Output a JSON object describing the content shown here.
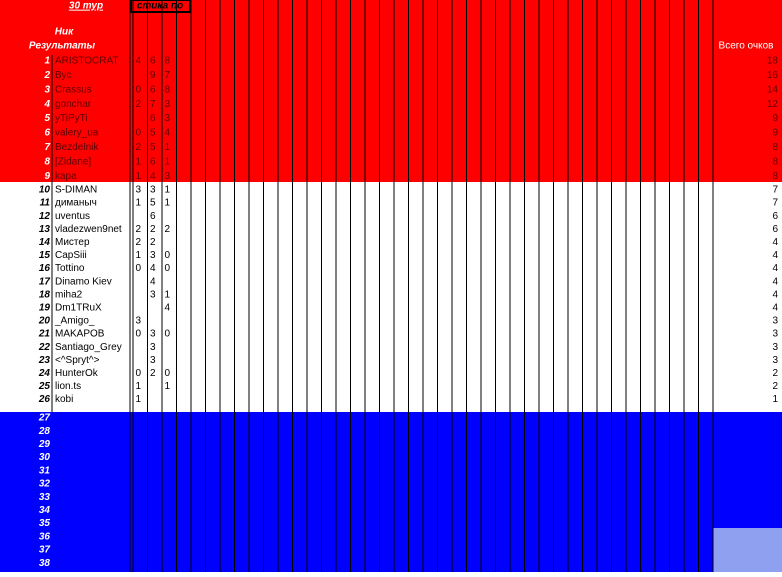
{
  "header": {
    "round": "30 тур",
    "stats": "стика по",
    "nick": "Ник",
    "results": "Результаты",
    "total": "Всего очков"
  },
  "table": {
    "rows": [
      {
        "rank": "1",
        "nick": "ARISTOCRAT",
        "scores": [
          4,
          6,
          8
        ],
        "total": 18
      },
      {
        "rank": "2",
        "nick": "Вус",
        "scores": [
          null,
          9,
          7
        ],
        "total": 16
      },
      {
        "rank": "3",
        "nick": "Crassus",
        "scores": [
          0,
          6,
          8
        ],
        "total": 14
      },
      {
        "rank": "4",
        "nick": "gonchar",
        "scores": [
          2,
          7,
          3
        ],
        "total": 12
      },
      {
        "rank": "5",
        "nick": "yTiPyTi",
        "scores": [
          null,
          6,
          3
        ],
        "total": 9
      },
      {
        "rank": "6",
        "nick": "valery_ua",
        "scores": [
          0,
          5,
          4
        ],
        "total": 9
      },
      {
        "rank": "7",
        "nick": "Bezdelnik",
        "scores": [
          2,
          5,
          1
        ],
        "total": 8
      },
      {
        "rank": "8",
        "nick": "[Zidane]",
        "scores": [
          1,
          6,
          1
        ],
        "total": 8
      },
      {
        "rank": "9",
        "nick": "kapa",
        "scores": [
          1,
          4,
          3
        ],
        "total": 8
      },
      {
        "rank": "10",
        "nick": "S-DIMAN",
        "scores": [
          3,
          3,
          1
        ],
        "total": 7
      },
      {
        "rank": "11",
        "nick": "диманыч",
        "scores": [
          1,
          5,
          1
        ],
        "total": 7
      },
      {
        "rank": "12",
        "nick": "uventus",
        "scores": [
          null,
          6,
          null
        ],
        "total": 6
      },
      {
        "rank": "13",
        "nick": "vladezwen9net",
        "scores": [
          2,
          2,
          2
        ],
        "total": 6
      },
      {
        "rank": "14",
        "nick": "Мистер",
        "scores": [
          2,
          2,
          null
        ],
        "total": 4
      },
      {
        "rank": "15",
        "nick": "CapSiii",
        "scores": [
          1,
          3,
          0
        ],
        "total": 4
      },
      {
        "rank": "16",
        "nick": "Tottino",
        "scores": [
          0,
          4,
          0
        ],
        "total": 4
      },
      {
        "rank": "17",
        "nick": "Dinamo Kiev",
        "scores": [
          null,
          4,
          null
        ],
        "total": 4
      },
      {
        "rank": "18",
        "nick": "miha2",
        "scores": [
          null,
          3,
          1
        ],
        "total": 4
      },
      {
        "rank": "19",
        "nick": "Dm1TRuX",
        "scores": [
          null,
          null,
          4
        ],
        "total": 4
      },
      {
        "rank": "20",
        "nick": "_Amigo_",
        "scores": [
          3,
          null,
          null
        ],
        "total": 3
      },
      {
        "rank": "21",
        "nick": "MAKAPOB",
        "scores": [
          0,
          3,
          0
        ],
        "total": 3
      },
      {
        "rank": "22",
        "nick": "Santiago_Grey",
        "scores": [
          null,
          3,
          null
        ],
        "total": 3
      },
      {
        "rank": "23",
        "nick": "<^Spryt^>",
        "scores": [
          null,
          3,
          null
        ],
        "total": 3
      },
      {
        "rank": "24",
        "nick": "HunterOk",
        "scores": [
          0,
          2,
          0
        ],
        "total": 2
      },
      {
        "rank": "25",
        "nick": "lion.ts",
        "scores": [
          1,
          null,
          1
        ],
        "total": 2
      },
      {
        "rank": "26",
        "nick": "kobi",
        "scores": [
          1,
          null,
          null
        ],
        "total": 1
      },
      {
        "rank": "27"
      },
      {
        "rank": "28"
      },
      {
        "rank": "29"
      },
      {
        "rank": "30"
      },
      {
        "rank": "31"
      },
      {
        "rank": "32"
      },
      {
        "rank": "33"
      },
      {
        "rank": "34"
      },
      {
        "rank": "35"
      },
      {
        "rank": "36"
      },
      {
        "rank": "37"
      },
      {
        "rank": "38"
      }
    ]
  }
}
